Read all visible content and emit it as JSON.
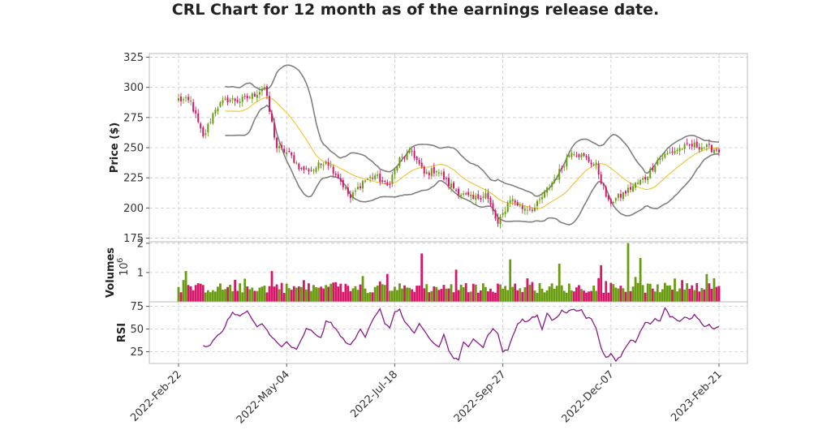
{
  "chart_data": {
    "title": "CRL Chart for 12 month as of the earnings release date.",
    "type": "candlestick",
    "x_tick_labels": [
      "2022-Feb-22",
      "2022-May-04",
      "2022-Jul-18",
      "2022-Sep-27",
      "2022-Dec-07",
      "2023-Feb-21"
    ],
    "price_panel": {
      "ylabel": "Price ($)",
      "ylim": [
        172,
        328
      ],
      "yticks": [
        175,
        200,
        225,
        250,
        275,
        300,
        325
      ],
      "grid": true,
      "close_anchors": [
        [
          0,
          290
        ],
        [
          5,
          288
        ],
        [
          10,
          258
        ],
        [
          15,
          283
        ],
        [
          20,
          290
        ],
        [
          25,
          289
        ],
        [
          30,
          293
        ],
        [
          35,
          300
        ],
        [
          40,
          250
        ],
        [
          45,
          245
        ],
        [
          50,
          232
        ],
        [
          55,
          232
        ],
        [
          60,
          240
        ],
        [
          65,
          226
        ],
        [
          70,
          208
        ],
        [
          75,
          222
        ],
        [
          80,
          227
        ],
        [
          85,
          218
        ],
        [
          90,
          240
        ],
        [
          95,
          247
        ],
        [
          100,
          228
        ],
        [
          105,
          232
        ],
        [
          110,
          220
        ],
        [
          115,
          212
        ],
        [
          120,
          207
        ],
        [
          125,
          212
        ],
        [
          130,
          186
        ],
        [
          135,
          208
        ],
        [
          140,
          200
        ],
        [
          145,
          200
        ],
        [
          150,
          215
        ],
        [
          155,
          230
        ],
        [
          160,
          248
        ],
        [
          165,
          242
        ],
        [
          170,
          235
        ],
        [
          175,
          204
        ],
        [
          180,
          210
        ],
        [
          185,
          218
        ],
        [
          190,
          225
        ],
        [
          195,
          240
        ],
        [
          200,
          246
        ],
        [
          205,
          250
        ],
        [
          210,
          252
        ],
        [
          215,
          250
        ],
        [
          220,
          248
        ]
      ],
      "sma_color": "#f2c12e",
      "bands_color": "#808080",
      "up_color": "#6a9c12",
      "down_color": "#d6186b"
    },
    "volume_panel": {
      "ylabel": "Volumes",
      "multiplier_label": "10",
      "multiplier_exp": "6",
      "ylim": [
        0,
        2.05
      ],
      "yticks": [
        1,
        2
      ],
      "spikes": [
        [
          3,
          1.05
        ],
        [
          38,
          1.05
        ],
        [
          85,
          0.95
        ],
        [
          99,
          1.65
        ],
        [
          113,
          1.1
        ],
        [
          135,
          1.45
        ],
        [
          155,
          1.3
        ],
        [
          172,
          1.25
        ],
        [
          183,
          2.0
        ],
        [
          188,
          1.5
        ],
        [
          215,
          0.95
        ]
      ]
    },
    "rsi_panel": {
      "ylabel": "RSI",
      "ylim": [
        12,
        80
      ],
      "yticks": [
        25,
        50,
        75
      ],
      "color": "#8a1a8a",
      "anchors": [
        [
          10,
          32
        ],
        [
          12,
          30
        ],
        [
          15,
          40
        ],
        [
          18,
          48
        ],
        [
          20,
          60
        ],
        [
          22,
          68
        ],
        [
          25,
          64
        ],
        [
          28,
          70
        ],
        [
          30,
          60
        ],
        [
          32,
          52
        ],
        [
          34,
          56
        ],
        [
          37,
          45
        ],
        [
          40,
          35
        ],
        [
          42,
          30
        ],
        [
          44,
          36
        ],
        [
          46,
          30
        ],
        [
          48,
          27
        ],
        [
          50,
          38
        ],
        [
          52,
          50
        ],
        [
          54,
          48
        ],
        [
          56,
          44
        ],
        [
          58,
          40
        ],
        [
          60,
          58
        ],
        [
          62,
          57
        ],
        [
          64,
          50
        ],
        [
          66,
          42
        ],
        [
          68,
          36
        ],
        [
          70,
          32
        ],
        [
          72,
          40
        ],
        [
          74,
          50
        ],
        [
          76,
          42
        ],
        [
          78,
          55
        ],
        [
          80,
          65
        ],
        [
          82,
          72
        ],
        [
          84,
          55
        ],
        [
          86,
          52
        ],
        [
          88,
          68
        ],
        [
          90,
          72
        ],
        [
          92,
          58
        ],
        [
          94,
          52
        ],
        [
          96,
          45
        ],
        [
          98,
          55
        ],
        [
          100,
          48
        ],
        [
          102,
          40
        ],
        [
          104,
          34
        ],
        [
          106,
          30
        ],
        [
          108,
          44
        ],
        [
          110,
          26
        ],
        [
          112,
          18
        ],
        [
          114,
          16
        ],
        [
          116,
          35
        ],
        [
          118,
          30
        ],
        [
          120,
          40
        ],
        [
          122,
          35
        ],
        [
          124,
          30
        ],
        [
          126,
          44
        ],
        [
          128,
          50
        ],
        [
          130,
          45
        ],
        [
          132,
          25
        ],
        [
          134,
          27
        ],
        [
          136,
          42
        ],
        [
          138,
          55
        ],
        [
          140,
          60
        ],
        [
          142,
          58
        ],
        [
          144,
          63
        ],
        [
          146,
          65
        ],
        [
          148,
          50
        ],
        [
          150,
          68
        ],
        [
          152,
          60
        ],
        [
          154,
          62
        ],
        [
          156,
          70
        ],
        [
          158,
          68
        ],
        [
          160,
          72
        ],
        [
          162,
          70
        ],
        [
          164,
          72
        ],
        [
          166,
          62
        ],
        [
          168,
          62
        ],
        [
          170,
          50
        ],
        [
          172,
          30
        ],
        [
          174,
          18
        ],
        [
          176,
          22
        ],
        [
          178,
          15
        ],
        [
          180,
          20
        ],
        [
          182,
          30
        ],
        [
          184,
          38
        ],
        [
          186,
          36
        ],
        [
          188,
          48
        ],
        [
          190,
          58
        ],
        [
          192,
          55
        ],
        [
          194,
          62
        ],
        [
          196,
          58
        ],
        [
          198,
          74
        ],
        [
          200,
          64
        ],
        [
          202,
          62
        ],
        [
          204,
          58
        ],
        [
          206,
          64
        ],
        [
          208,
          60
        ],
        [
          210,
          66
        ],
        [
          212,
          60
        ],
        [
          214,
          52
        ],
        [
          216,
          55
        ],
        [
          218,
          50
        ],
        [
          220,
          52
        ]
      ]
    }
  }
}
